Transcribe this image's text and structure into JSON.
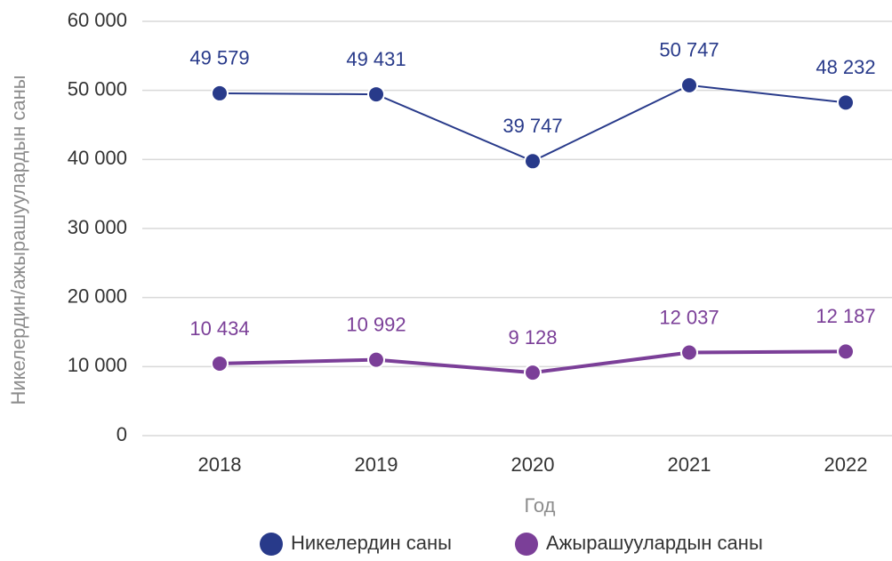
{
  "chart_data": {
    "type": "line",
    "x_label": "Год",
    "y_label": "Никелердин/ажырашуулардын саны",
    "categories": [
      "2018",
      "2019",
      "2020",
      "2021",
      "2022"
    ],
    "series": [
      {
        "name": "Никелердин саны",
        "color": "#283a8a",
        "values": [
          49579,
          49431,
          39747,
          50747,
          48232
        ],
        "value_labels": [
          "49 579",
          "49 431",
          "39 747",
          "50 747",
          "48 232"
        ]
      },
      {
        "name": "Ажырашуулардын саны",
        "color": "#7b3f98",
        "values": [
          10434,
          10992,
          9128,
          12037,
          12187
        ],
        "value_labels": [
          "10 434",
          "10 992",
          "9 128",
          "12 037",
          "12 187"
        ]
      }
    ],
    "ylim": [
      0,
      60000
    ],
    "yticks": [
      0,
      {
        "value": 10000,
        "label": "10 000"
      },
      {
        "value": 20000,
        "label": "20 000"
      },
      {
        "value": 30000,
        "label": "30 000"
      },
      {
        "value": 40000,
        "label": "40 000"
      },
      {
        "value": 50000,
        "label": "50 000"
      },
      {
        "value": 60000,
        "label": "60 000"
      }
    ],
    "grid": true,
    "legend": "bottom"
  }
}
